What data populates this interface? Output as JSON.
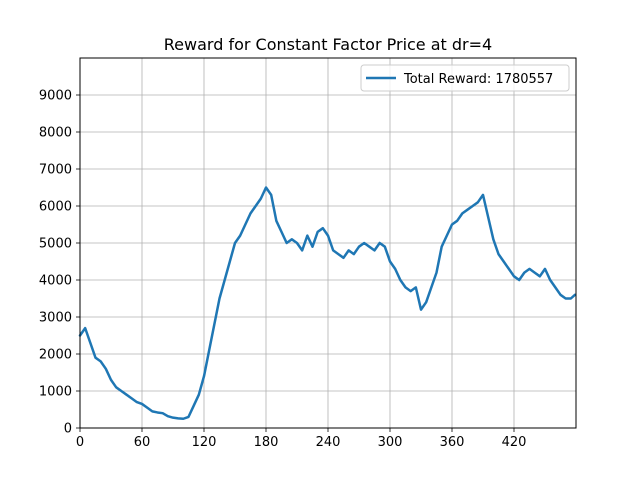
{
  "chart_data": {
    "type": "line",
    "title": "Reward for Constant Factor Price at dr=4",
    "xlabel": "",
    "ylabel": "",
    "xlim": [
      0,
      480
    ],
    "ylim": [
      0,
      10000
    ],
    "xticks": [
      0,
      60,
      120,
      180,
      240,
      300,
      360,
      420
    ],
    "yticks": [
      0,
      1000,
      2000,
      3000,
      4000,
      5000,
      6000,
      7000,
      8000,
      9000
    ],
    "grid": true,
    "legend_position": "top-right",
    "line_color": "#1f77b4",
    "series": [
      {
        "name": "Total Reward: 1780557",
        "x": [
          0,
          5,
          10,
          15,
          20,
          25,
          30,
          35,
          40,
          45,
          50,
          55,
          60,
          65,
          70,
          75,
          80,
          85,
          90,
          95,
          100,
          105,
          110,
          115,
          120,
          125,
          130,
          135,
          140,
          145,
          150,
          155,
          160,
          165,
          170,
          175,
          180,
          185,
          190,
          195,
          200,
          205,
          210,
          215,
          220,
          225,
          230,
          235,
          240,
          245,
          250,
          255,
          260,
          265,
          270,
          275,
          280,
          285,
          290,
          295,
          300,
          305,
          310,
          315,
          320,
          325,
          330,
          335,
          340,
          345,
          350,
          355,
          360,
          365,
          370,
          375,
          380,
          385,
          390,
          395,
          400,
          405,
          410,
          415,
          420,
          425,
          430,
          435,
          440,
          445,
          450,
          455,
          460,
          465,
          470,
          475,
          479
        ],
        "y": [
          2500,
          2700,
          2300,
          1900,
          1800,
          1600,
          1300,
          1100,
          1000,
          900,
          800,
          700,
          650,
          550,
          450,
          420,
          400,
          320,
          280,
          260,
          250,
          300,
          600,
          900,
          1400,
          2100,
          2800,
          3500,
          4000,
          4500,
          5000,
          5200,
          5500,
          5800,
          6000,
          6200,
          6500,
          6300,
          5600,
          5300,
          5000,
          5100,
          5000,
          4800,
          5200,
          4900,
          5300,
          5400,
          5200,
          4800,
          4700,
          4600,
          4800,
          4700,
          4900,
          5000,
          4900,
          4800,
          5000,
          4900,
          4500,
          4300,
          4000,
          3800,
          3700,
          3800,
          3200,
          3400,
          3800,
          4200,
          4900,
          5200,
          5500,
          5600,
          5800,
          5900,
          6000,
          6100,
          6300,
          5700,
          5100,
          4700,
          4500,
          4300,
          4100,
          4000,
          4200,
          4300,
          4200,
          4100,
          4300,
          4000,
          3800,
          3600,
          3500,
          3500,
          3600
        ]
      }
    ]
  }
}
